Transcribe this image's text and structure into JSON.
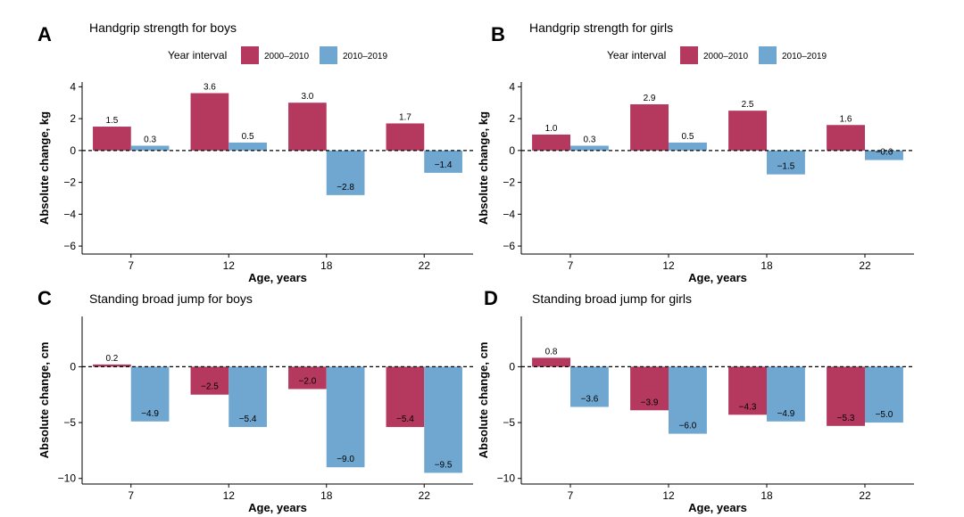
{
  "colors": {
    "s2000_2010": "#b5395f",
    "s2010_2019": "#6fa7d1"
  },
  "legend": {
    "title": "Year interval",
    "entries": [
      "2000–2010",
      "2010–2019"
    ]
  },
  "chart_data": [
    {
      "letter": "A",
      "type": "bar",
      "title": "Handgrip strength for boys",
      "xlabel": "Age, years",
      "ylabel": "Absolute change, kg",
      "categories": [
        "7",
        "12",
        "18",
        "22"
      ],
      "yticks": [
        4,
        2,
        0,
        -2,
        -4,
        -6
      ],
      "ylim": [
        -6.5,
        4.3
      ],
      "series": [
        {
          "name": "2000–2010",
          "values": [
            1.5,
            3.6,
            3.0,
            1.7
          ],
          "labels": [
            "1.5",
            "3.6",
            "3.0",
            "1.7"
          ]
        },
        {
          "name": "2010–2019",
          "values": [
            0.3,
            0.5,
            -2.8,
            -1.4
          ],
          "labels": [
            "0.3",
            "0.5",
            "−2.8",
            "−1.4"
          ]
        }
      ]
    },
    {
      "letter": "B",
      "type": "bar",
      "title": "Handgrip strength for girls",
      "xlabel": "Age, years",
      "ylabel": "Absolute change, kg",
      "categories": [
        "7",
        "12",
        "18",
        "22"
      ],
      "yticks": [
        4,
        2,
        0,
        -2,
        -4,
        -6
      ],
      "ylim": [
        -6.5,
        4.3
      ],
      "series": [
        {
          "name": "2000–2010",
          "values": [
            1.0,
            2.9,
            2.5,
            1.6
          ],
          "labels": [
            "1.0",
            "2.9",
            "2.5",
            "1.6"
          ]
        },
        {
          "name": "2010–2019",
          "values": [
            0.3,
            0.5,
            -1.5,
            -0.6
          ],
          "labels": [
            "0.3",
            "0.5",
            "−1.5",
            "−0.6"
          ]
        }
      ]
    },
    {
      "letter": "C",
      "type": "bar",
      "title": "Standing broad jump for boys",
      "xlabel": "Age, years",
      "ylabel": "Absolute change, cm",
      "categories": [
        "7",
        "12",
        "18",
        "22"
      ],
      "yticks": [
        0,
        -5,
        -10
      ],
      "ylim": [
        -10.5,
        4.5
      ],
      "series": [
        {
          "name": "2000–2010",
          "values": [
            0.2,
            -2.5,
            -2.0,
            -5.4
          ],
          "labels": [
            "0.2",
            "−2.5",
            "−2.0",
            "−5.4"
          ]
        },
        {
          "name": "2010–2019",
          "values": [
            -4.9,
            -5.4,
            -9.0,
            -9.5
          ],
          "labels": [
            "−4.9",
            "−5.4",
            "−9.0",
            "−9.5"
          ]
        }
      ]
    },
    {
      "letter": "D",
      "type": "bar",
      "title": "Standing broad jump for girls",
      "xlabel": "Age, years",
      "ylabel": "Absolute change, cm",
      "categories": [
        "7",
        "12",
        "18",
        "22"
      ],
      "yticks": [
        0,
        -5,
        -10
      ],
      "ylim": [
        -10.5,
        4.5
      ],
      "series": [
        {
          "name": "2000–2010",
          "values": [
            0.8,
            -3.9,
            -4.3,
            -5.3
          ],
          "labels": [
            "0.8",
            "−3.9",
            "−4.3",
            "−5.3"
          ]
        },
        {
          "name": "2010–2019",
          "values": [
            -3.6,
            -6.0,
            -4.9,
            -5.0
          ],
          "labels": [
            "−3.6",
            "−6.0",
            "−4.9",
            "−5.0"
          ]
        }
      ]
    }
  ]
}
